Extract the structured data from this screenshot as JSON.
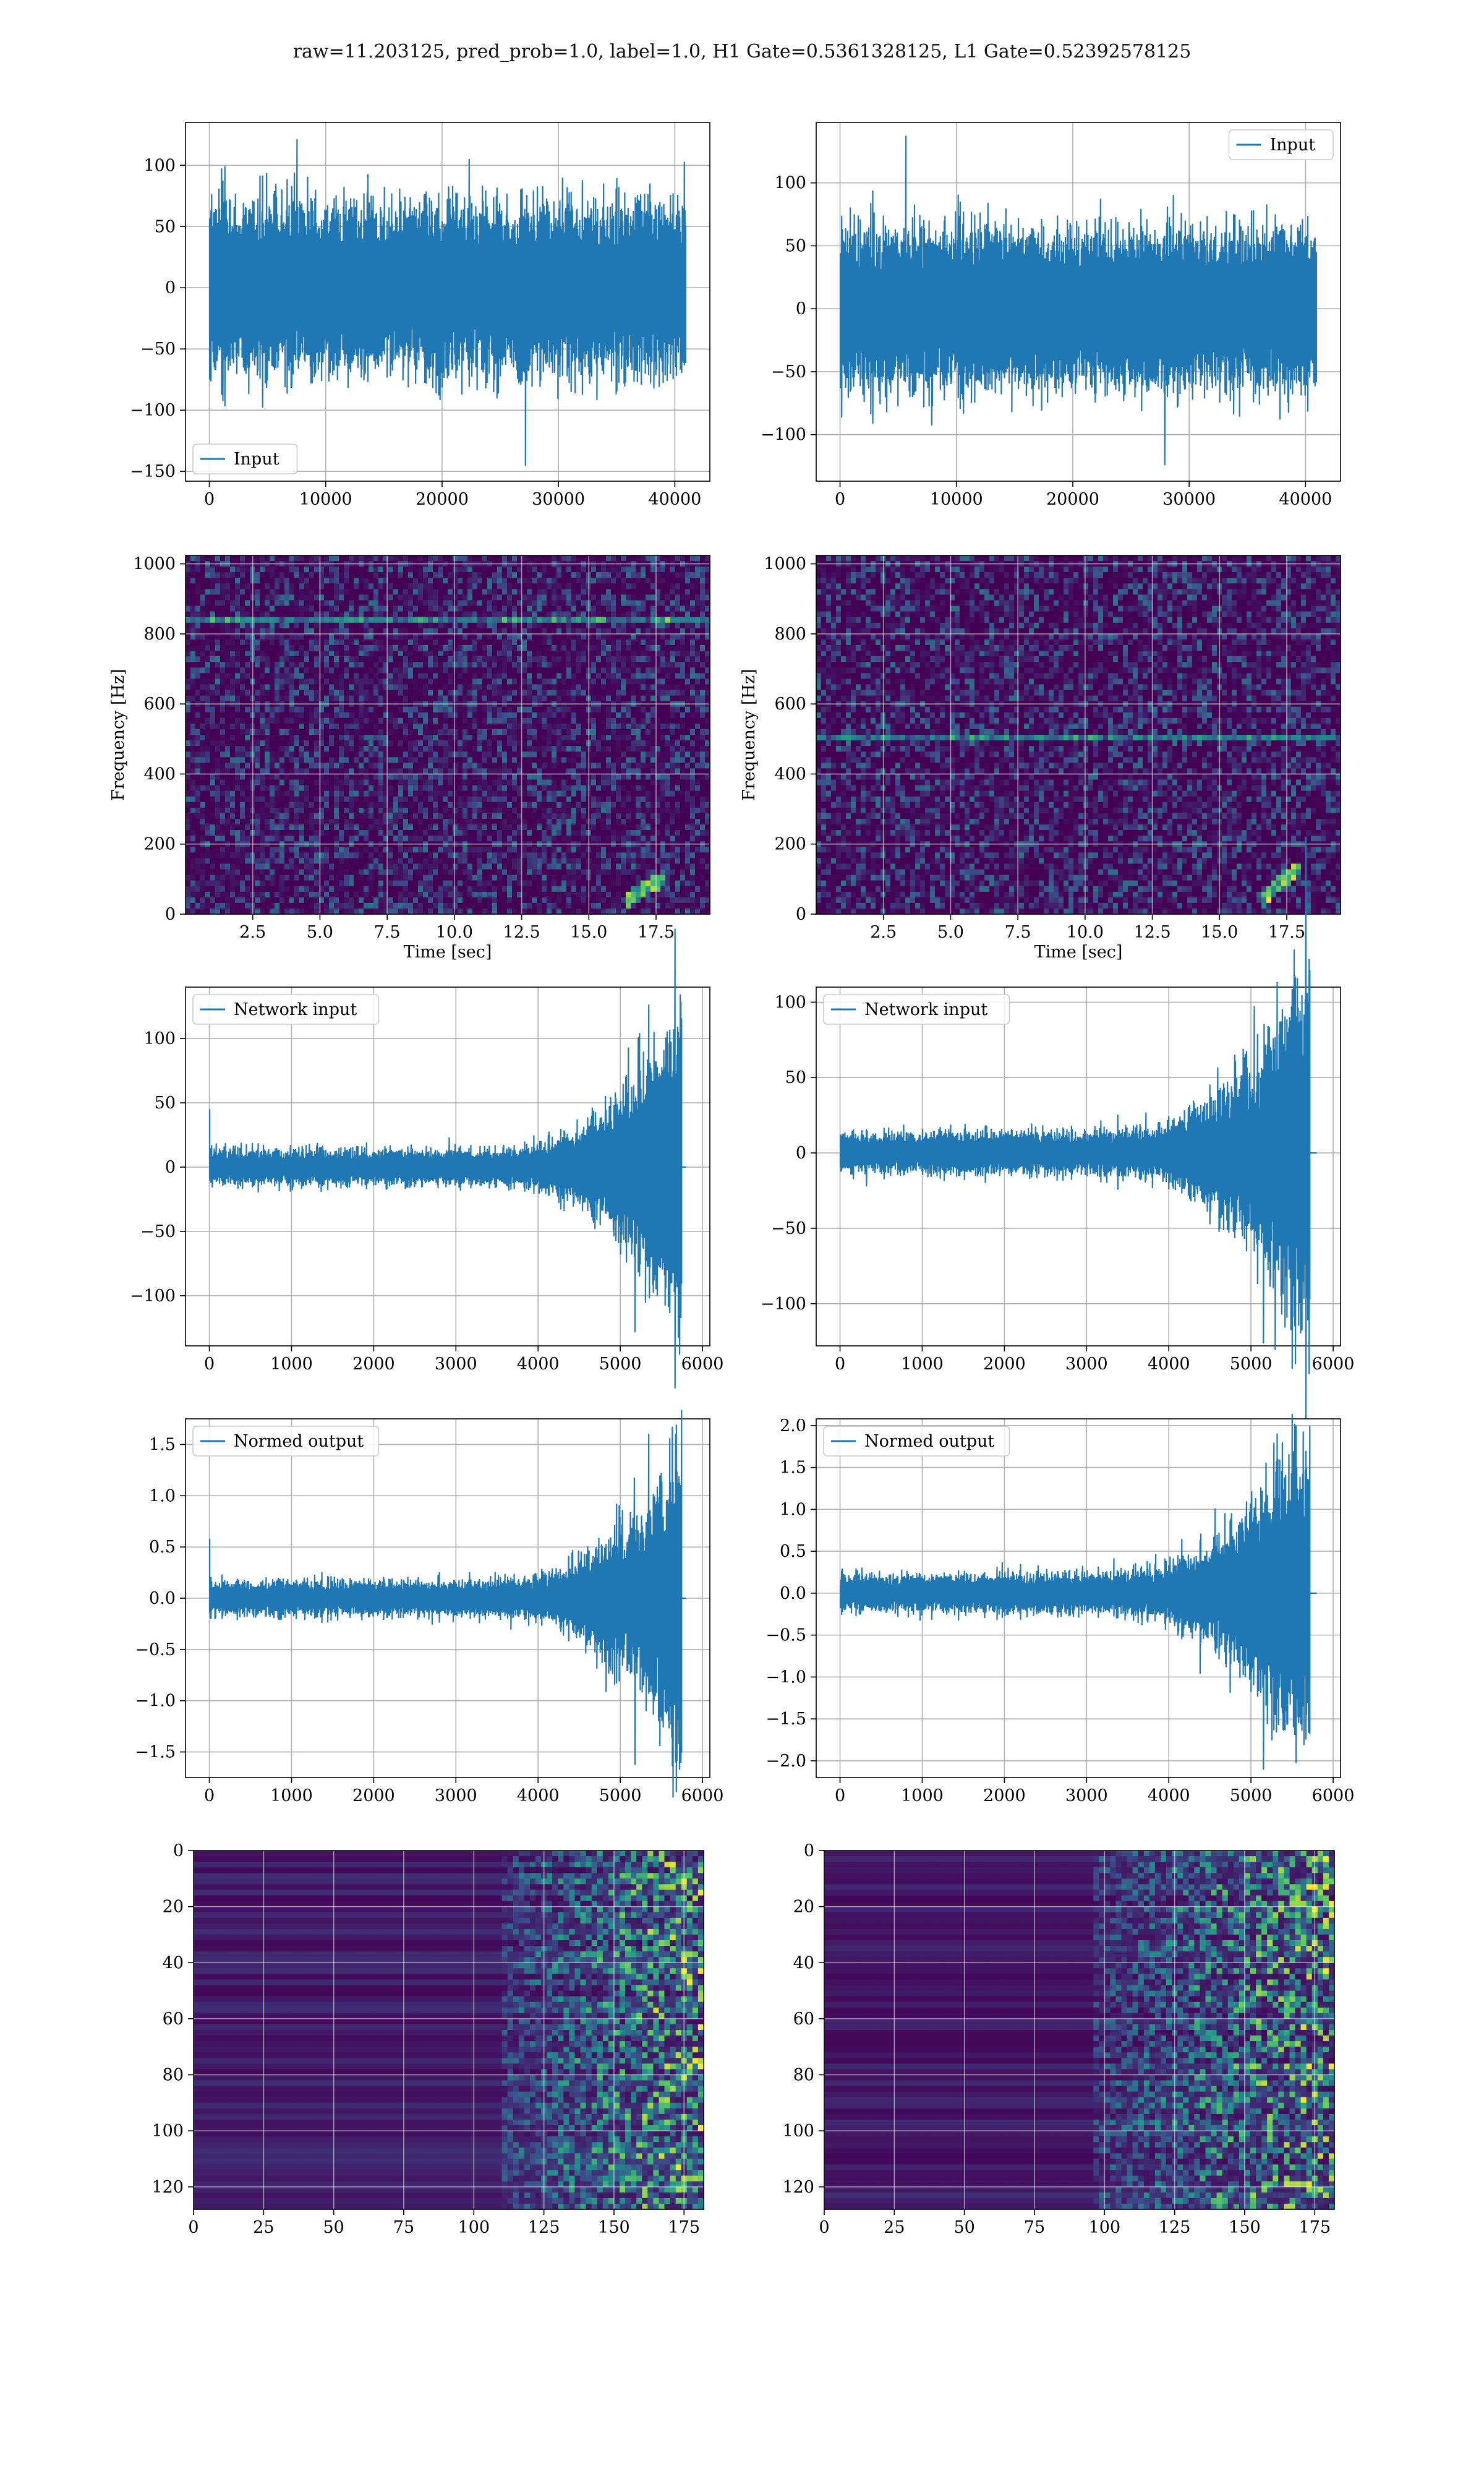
{
  "figure": {
    "suptitle": "raw=11.203125, pred_prob=1.0, label=1.0, H1 Gate=0.5361328125, L1 Gate=0.52392578125",
    "background": "#ffffff",
    "line_color": "#1f77b4",
    "colormap": "viridis",
    "grid_color": "#b0b0b0"
  },
  "chart_data": [
    {
      "id": "h1-input",
      "type": "line",
      "legend_loc": "lower-left",
      "grid": true,
      "xlim": [
        -2048,
        43008
      ],
      "ylim": [
        -158,
        135
      ],
      "xticks": [
        0,
        10000,
        20000,
        30000,
        40000
      ],
      "xtick_labels": [
        "0",
        "10000",
        "20000",
        "30000",
        "40000"
      ],
      "yticks": [
        -150,
        -100,
        -50,
        0,
        50,
        100
      ],
      "ytick_labels": [
        "−150",
        "−100",
        "−50",
        "0",
        "50",
        "100"
      ],
      "series": [
        {
          "name": "Input",
          "kind": "noise",
          "n": 40960,
          "sigma": 22,
          "peak_max": 121,
          "peak_min": -145
        }
      ]
    },
    {
      "id": "l1-input",
      "type": "line",
      "legend_loc": "top-right",
      "grid": true,
      "xlim": [
        -2048,
        43008
      ],
      "ylim": [
        -137,
        148
      ],
      "xticks": [
        0,
        10000,
        20000,
        30000,
        40000
      ],
      "xtick_labels": [
        "0",
        "10000",
        "20000",
        "30000",
        "40000"
      ],
      "yticks": [
        -100,
        -50,
        0,
        50,
        100
      ],
      "ytick_labels": [
        "−100",
        "−50",
        "0",
        "50",
        "100"
      ],
      "series": [
        {
          "name": "Input",
          "kind": "noise",
          "n": 40960,
          "sigma": 20,
          "peak_max": 137,
          "peak_min": -124
        }
      ]
    },
    {
      "id": "h1-spectrogram",
      "type": "heatmap",
      "grid": true,
      "xlabel": "Time [sec]",
      "ylabel": "Frequency [Hz]",
      "xlim": [
        0,
        19.5
      ],
      "ylim": [
        0,
        1024
      ],
      "xticks": [
        2.5,
        5.0,
        7.5,
        10.0,
        12.5,
        15.0,
        17.5
      ],
      "xtick_labels": [
        "2.5",
        "5.0",
        "7.5",
        "10.0",
        "12.5",
        "15.0",
        "17.5"
      ],
      "yticks": [
        0,
        200,
        400,
        600,
        800,
        1000
      ],
      "ytick_labels": [
        "0",
        "200",
        "400",
        "600",
        "800",
        "1000"
      ],
      "features": {
        "line_hz": [
          835
        ],
        "chirp_end_sec": 17.9,
        "chirp_max_hz": 90
      }
    },
    {
      "id": "l1-spectrogram",
      "type": "heatmap",
      "grid": true,
      "xlabel": "Time [sec]",
      "ylabel": "Frequency [Hz]",
      "xlim": [
        0,
        19.5
      ],
      "ylim": [
        0,
        1024
      ],
      "xticks": [
        2.5,
        5.0,
        7.5,
        10.0,
        12.5,
        15.0,
        17.5
      ],
      "xtick_labels": [
        "2.5",
        "5.0",
        "7.5",
        "10.0",
        "12.5",
        "15.0",
        "17.5"
      ],
      "yticks": [
        0,
        200,
        400,
        600,
        800,
        1000
      ],
      "ytick_labels": [
        "0",
        "200",
        "400",
        "600",
        "800",
        "1000"
      ],
      "features": {
        "line_hz": [
          500
        ],
        "chirp_end_sec": 18.1,
        "chirp_max_hz": 120
      }
    },
    {
      "id": "h1-network-input",
      "type": "line",
      "legend_loc": "top-left",
      "grid": true,
      "xlim": [
        -290,
        6090
      ],
      "ylim": [
        -139,
        140
      ],
      "xticks": [
        0,
        1000,
        2000,
        3000,
        4000,
        5000,
        6000
      ],
      "xtick_labels": [
        "0",
        "1000",
        "2000",
        "3000",
        "4000",
        "5000",
        "6000"
      ],
      "yticks": [
        -100,
        -50,
        0,
        50,
        100
      ],
      "ytick_labels": [
        "−100",
        "−50",
        "0",
        "50",
        "100"
      ],
      "series": [
        {
          "name": "Network input",
          "kind": "chirp",
          "n": 5800,
          "end": 5750,
          "base": 6,
          "rise_start": 3000,
          "peak_max": 126,
          "peak_min": -128,
          "start_spike": 45
        }
      ]
    },
    {
      "id": "l1-network-input",
      "type": "line",
      "legend_loc": "top-left",
      "grid": true,
      "xlim": [
        -290,
        6090
      ],
      "ylim": [
        -128,
        110
      ],
      "xticks": [
        0,
        1000,
        2000,
        3000,
        4000,
        5000,
        6000
      ],
      "xtick_labels": [
        "0",
        "1000",
        "2000",
        "3000",
        "4000",
        "5000",
        "6000"
      ],
      "yticks": [
        -100,
        -50,
        0,
        50,
        100
      ],
      "ytick_labels": [
        "−100",
        "−50",
        "0",
        "50",
        "100"
      ],
      "series": [
        {
          "name": "Network input",
          "kind": "chirp",
          "n": 5800,
          "end": 5720,
          "base": 6,
          "rise_start": 2700,
          "peak_max": 113,
          "peak_min": -126,
          "start_spike": 0
        }
      ]
    },
    {
      "id": "h1-normed-output",
      "type": "line",
      "legend_loc": "top-left",
      "grid": true,
      "xlim": [
        -290,
        6090
      ],
      "ylim": [
        -1.75,
        1.75
      ],
      "xticks": [
        0,
        1000,
        2000,
        3000,
        4000,
        5000,
        6000
      ],
      "xtick_labels": [
        "0",
        "1000",
        "2000",
        "3000",
        "4000",
        "5000",
        "6000"
      ],
      "yticks": [
        -1.5,
        -1.0,
        -0.5,
        0.0,
        0.5,
        1.0,
        1.5
      ],
      "ytick_labels": [
        "−1.5",
        "−1.0",
        "−0.5",
        "0.0",
        "0.5",
        "1.0",
        "1.5"
      ],
      "series": [
        {
          "name": "Normed output",
          "kind": "chirp",
          "n": 5800,
          "end": 5750,
          "base": 0.075,
          "rise_start": 3000,
          "peak_max": 1.6,
          "peak_min": -1.62,
          "start_spike": 0.58
        }
      ]
    },
    {
      "id": "l1-normed-output",
      "type": "line",
      "legend_loc": "top-left",
      "grid": true,
      "xlim": [
        -290,
        6090
      ],
      "ylim": [
        -2.2,
        2.08
      ],
      "xticks": [
        0,
        1000,
        2000,
        3000,
        4000,
        5000,
        6000
      ],
      "xtick_labels": [
        "0",
        "1000",
        "2000",
        "3000",
        "4000",
        "5000",
        "6000"
      ],
      "yticks": [
        -2.0,
        -1.5,
        -1.0,
        -0.5,
        0.0,
        0.5,
        1.0,
        1.5,
        2.0
      ],
      "ytick_labels": [
        "−2.0",
        "−1.5",
        "−1.0",
        "−0.5",
        "0.0",
        "0.5",
        "1.0",
        "1.5",
        "2.0"
      ],
      "series": [
        {
          "name": "Normed output",
          "kind": "chirp",
          "n": 5800,
          "end": 5720,
          "base": 0.1,
          "rise_start": 2700,
          "peak_max": 1.9,
          "peak_min": -2.1,
          "start_spike": 0
        }
      ]
    },
    {
      "id": "h1-feature-map",
      "type": "heatmap",
      "grid": true,
      "xlim": [
        0,
        182
      ],
      "ylim": [
        128,
        0
      ],
      "xticks": [
        0,
        25,
        50,
        75,
        100,
        125,
        150,
        175
      ],
      "xtick_labels": [
        "0",
        "25",
        "50",
        "75",
        "100",
        "125",
        "150",
        "175"
      ],
      "yticks": [
        0,
        20,
        40,
        60,
        80,
        100,
        120
      ],
      "ytick_labels": [
        "0",
        "20",
        "40",
        "60",
        "80",
        "100",
        "120"
      ],
      "features": {
        "active_from_col": 110
      }
    },
    {
      "id": "l1-feature-map",
      "type": "heatmap",
      "grid": true,
      "xlim": [
        0,
        182
      ],
      "ylim": [
        128,
        0
      ],
      "xticks": [
        0,
        25,
        50,
        75,
        100,
        125,
        150,
        175
      ],
      "xtick_labels": [
        "0",
        "25",
        "50",
        "75",
        "100",
        "125",
        "150",
        "175"
      ],
      "yticks": [
        0,
        20,
        40,
        60,
        80,
        100,
        120
      ],
      "ytick_labels": [
        "0",
        "20",
        "40",
        "60",
        "80",
        "100",
        "120"
      ],
      "features": {
        "active_from_col": 95
      }
    }
  ]
}
